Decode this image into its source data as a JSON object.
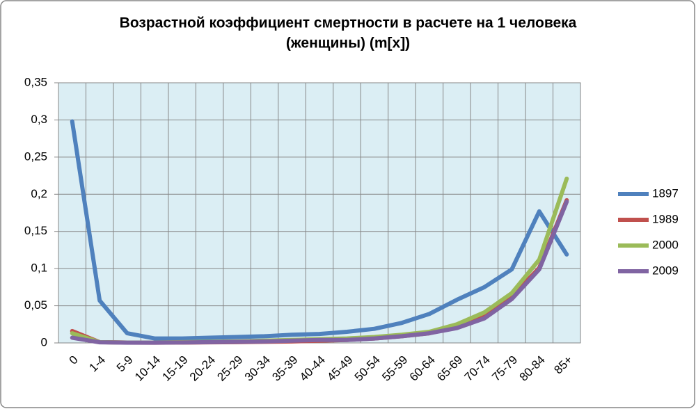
{
  "chart_data": {
    "type": "line",
    "title": [
      "Возрастной коэффициент смертности в расчете на 1 человека",
      "(женщины) (m[x])"
    ],
    "categories": [
      "0",
      "1-4",
      "5-9",
      "10-14",
      "15-19",
      "20-24",
      "25-29",
      "30-34",
      "35-39",
      "40-44",
      "45-49",
      "50-54",
      "55-59",
      "60-64",
      "65-69",
      "70-74",
      "75-79",
      "80-84",
      "85+"
    ],
    "series": [
      {
        "name": "1897",
        "color": "#4f81bd",
        "values": [
          0.298,
          0.057,
          0.013,
          0.006,
          0.006,
          0.007,
          0.008,
          0.009,
          0.011,
          0.012,
          0.015,
          0.019,
          0.027,
          0.039,
          0.058,
          0.075,
          0.099,
          0.177,
          0.119
        ]
      },
      {
        "name": "1989",
        "color": "#c0504d",
        "values": [
          0.016,
          0.001,
          0.0005,
          0.0004,
          0.0005,
          0.0008,
          0.001,
          0.0015,
          0.002,
          0.003,
          0.004,
          0.006,
          0.009,
          0.013,
          0.021,
          0.035,
          0.062,
          0.101,
          0.192
        ]
      },
      {
        "name": "2000",
        "color": "#9bbb59",
        "values": [
          0.013,
          0.001,
          0.0005,
          0.0005,
          0.001,
          0.0015,
          0.002,
          0.003,
          0.004,
          0.005,
          0.006,
          0.008,
          0.011,
          0.015,
          0.025,
          0.041,
          0.067,
          0.112,
          0.221
        ]
      },
      {
        "name": "2009",
        "color": "#8064a2",
        "values": [
          0.007,
          0.0008,
          0.0004,
          0.0004,
          0.0006,
          0.001,
          0.0015,
          0.002,
          0.003,
          0.004,
          0.004,
          0.006,
          0.009,
          0.013,
          0.02,
          0.033,
          0.059,
          0.099,
          0.19
        ]
      }
    ],
    "ylim": [
      0,
      0.35
    ],
    "yticks": [
      0,
      {
        "value": 0.05,
        "label": "0,05"
      },
      {
        "value": 0.1,
        "label": "0,1"
      },
      {
        "value": 0.15,
        "label": "0,15"
      },
      {
        "value": 0.2,
        "label": "0,2"
      },
      {
        "value": 0.25,
        "label": "0,25"
      },
      {
        "value": 0.3,
        "label": "0,3"
      },
      {
        "value": 0.35,
        "label": "0,35"
      }
    ],
    "grid": true,
    "legend": "right",
    "plot_background": "#dbeef4"
  }
}
